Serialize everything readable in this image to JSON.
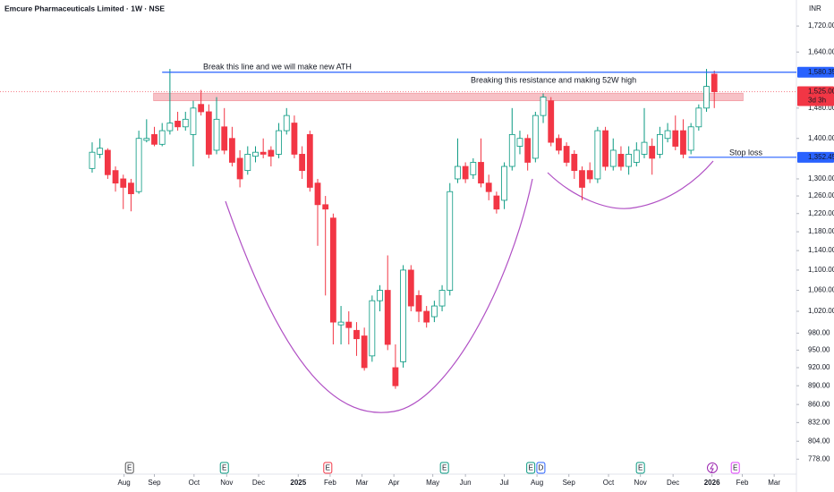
{
  "chart_data": {
    "type": "candlestick",
    "title": "Emcure Pharmaceuticals Limited · 1W · NSE",
    "currency": "INR",
    "log_scale": true,
    "ylim": [
      757,
      1804
    ],
    "yticks": [
      {
        "value": 1720,
        "label": "1,720.00"
      },
      {
        "value": 1640,
        "label": "1,640.00"
      },
      {
        "value": 1480,
        "label": "1,480.00"
      },
      {
        "value": 1400,
        "label": "1,400.00"
      },
      {
        "value": 1300,
        "label": "1,300.00"
      },
      {
        "value": 1260,
        "label": "1,260.00"
      },
      {
        "value": 1220,
        "label": "1,220.00"
      },
      {
        "value": 1180,
        "label": "1,180.00"
      },
      {
        "value": 1140,
        "label": "1,140.00"
      },
      {
        "value": 1100,
        "label": "1,100.00"
      },
      {
        "value": 1060,
        "label": "1,060.00"
      },
      {
        "value": 1020,
        "label": "1,020.00"
      },
      {
        "value": 980,
        "label": "980.00"
      },
      {
        "value": 950,
        "label": "950.00"
      },
      {
        "value": 920,
        "label": "920.00"
      },
      {
        "value": 890,
        "label": "890.00"
      },
      {
        "value": 860,
        "label": "860.00"
      },
      {
        "value": 832,
        "label": "832.00"
      },
      {
        "value": 804,
        "label": "804.00"
      },
      {
        "value": 778,
        "label": "778.00"
      }
    ],
    "xlim": [
      -11.85,
      90.56
    ],
    "xticks": [
      {
        "value": 4.1,
        "label": "Aug"
      },
      {
        "value": 8,
        "label": "Sep"
      },
      {
        "value": 13.1,
        "label": "Oct"
      },
      {
        "value": 17.3,
        "label": "Nov"
      },
      {
        "value": 21.4,
        "label": "Dec"
      },
      {
        "value": 26.5,
        "label": "2025"
      },
      {
        "value": 30.6,
        "label": "Feb"
      },
      {
        "value": 34.7,
        "label": "Mar"
      },
      {
        "value": 38.8,
        "label": "Apr"
      },
      {
        "value": 43.8,
        "label": "May"
      },
      {
        "value": 48,
        "label": "Jun"
      },
      {
        "value": 53,
        "label": "Jul"
      },
      {
        "value": 57.2,
        "label": "Aug"
      },
      {
        "value": 61.3,
        "label": "Sep"
      },
      {
        "value": 66.4,
        "label": "Oct"
      },
      {
        "value": 70.5,
        "label": "Nov"
      },
      {
        "value": 74.7,
        "label": "Dec"
      },
      {
        "value": 79.7,
        "label": "2026"
      },
      {
        "value": 83.6,
        "label": "Feb"
      },
      {
        "value": 87.7,
        "label": "Mar"
      }
    ],
    "up_color": "#089981",
    "down_color": "#f23645",
    "open": [
      1325,
      1360,
      1370,
      1320,
      1300,
      1290,
      1270,
      1395,
      1410,
      1385,
      1420,
      1445,
      1430,
      1410,
      1490,
      1470,
      1370,
      1430,
      1400,
      1350,
      1320,
      1355,
      1365,
      1370,
      1360,
      1420,
      1440,
      1360,
      1410,
      1290,
      1240,
      1210,
      995,
      1000,
      985,
      975,
      940,
      1040,
      1060,
      920,
      930,
      1100,
      1050,
      1020,
      1010,
      1030,
      1060,
      1300,
      1330,
      1310,
      1340,
      1290,
      1260,
      1250,
      1330,
      1380,
      1400,
      1350,
      1460,
      1500,
      1400,
      1380,
      1360,
      1320,
      1320,
      1300,
      1420,
      1330,
      1360,
      1330,
      1340,
      1360,
      1380,
      1360,
      1400,
      1420,
      1420,
      1370,
      1430,
      1480,
      1575
    ],
    "high": [
      1390,
      1400,
      1375,
      1330,
      1310,
      1300,
      1420,
      1450,
      1430,
      1440,
      1590,
      1470,
      1470,
      1500,
      1530,
      1490,
      1510,
      1480,
      1430,
      1370,
      1380,
      1380,
      1400,
      1380,
      1440,
      1480,
      1460,
      1380,
      1420,
      1300,
      1260,
      1220,
      1030,
      1020,
      1000,
      990,
      1050,
      1070,
      1130,
      960,
      1110,
      1110,
      1060,
      1030,
      1040,
      1070,
      1290,
      1400,
      1340,
      1350,
      1400,
      1310,
      1270,
      1340,
      1480,
      1420,
      1410,
      1470,
      1520,
      1510,
      1410,
      1390,
      1370,
      1330,
      1340,
      1430,
      1430,
      1400,
      1380,
      1380,
      1390,
      1480,
      1400,
      1430,
      1440,
      1460,
      1450,
      1440,
      1490,
      1590,
      1585
    ],
    "low": [
      1315,
      1350,
      1300,
      1270,
      1230,
      1225,
      1265,
      1390,
      1380,
      1380,
      1410,
      1420,
      1420,
      1330,
      1460,
      1350,
      1360,
      1360,
      1330,
      1280,
      1310,
      1340,
      1350,
      1330,
      1350,
      1410,
      1350,
      1300,
      1270,
      1150,
      1050,
      960,
      960,
      960,
      940,
      915,
      930,
      1020,
      950,
      885,
      920,
      1020,
      1000,
      990,
      1000,
      1020,
      1050,
      1290,
      1290,
      1300,
      1280,
      1250,
      1220,
      1230,
      1320,
      1360,
      1320,
      1340,
      1440,
      1380,
      1360,
      1330,
      1300,
      1250,
      1290,
      1290,
      1320,
      1320,
      1320,
      1310,
      1330,
      1350,
      1310,
      1350,
      1390,
      1370,
      1350,
      1360,
      1420,
      1470,
      1480
    ],
    "close": [
      1365,
      1375,
      1310,
      1290,
      1280,
      1265,
      1400,
      1400,
      1385,
      1420,
      1440,
      1430,
      1450,
      1480,
      1470,
      1360,
      1450,
      1370,
      1340,
      1300,
      1360,
      1365,
      1360,
      1355,
      1420,
      1460,
      1360,
      1320,
      1280,
      1240,
      1230,
      1000,
      1000,
      990,
      970,
      920,
      1040,
      1060,
      960,
      890,
      1100,
      1030,
      1020,
      1000,
      1030,
      1060,
      1270,
      1330,
      1300,
      1340,
      1290,
      1270,
      1230,
      1330,
      1410,
      1400,
      1340,
      1460,
      1510,
      1390,
      1370,
      1340,
      1320,
      1280,
      1300,
      1420,
      1330,
      1370,
      1330,
      1360,
      1370,
      1390,
      1350,
      1410,
      1420,
      1380,
      1360,
      1430,
      1480,
      1540,
      1525
    ],
    "levels": [
      {
        "value": 1580.35,
        "label": "1,580.35",
        "color": "#2962ff",
        "from": 9
      },
      {
        "value": 1352.45,
        "label": "1,352.45",
        "color": "#2962ff",
        "from": 76.7
      }
    ],
    "last_price": {
      "value": 1525,
      "label": "1,525.00",
      "countdown": "3d 3h",
      "color": "#f23645"
    },
    "zone": {
      "low": 1500,
      "high": 1521,
      "from": 7.9,
      "to": 83.7,
      "color": "#f7c1c6"
    },
    "annotations": [
      {
        "text": "Break this line and we will make new ATH",
        "color": "#2962ff"
      },
      {
        "text": "Breaking this resistance and making 52W high",
        "color": "#f23645"
      },
      {
        "text": "Stop loss",
        "color": "#f23645"
      }
    ],
    "events": [
      {
        "label": "E",
        "at": 4.8,
        "color": "#555"
      },
      {
        "label": "E",
        "at": 17,
        "color": "#089981"
      },
      {
        "label": "E",
        "at": 30.3,
        "color": "#f23645"
      },
      {
        "label": "E",
        "at": 45.3,
        "color": "#089981"
      },
      {
        "label": "E",
        "at": 56.4,
        "color": "#089981"
      },
      {
        "label": "D",
        "at": 57.7,
        "color": "#2962ff"
      },
      {
        "label": "E",
        "at": 70.5,
        "color": "#089981"
      },
      {
        "label": "E",
        "at": 82.7,
        "color": "#e040fb"
      }
    ]
  }
}
